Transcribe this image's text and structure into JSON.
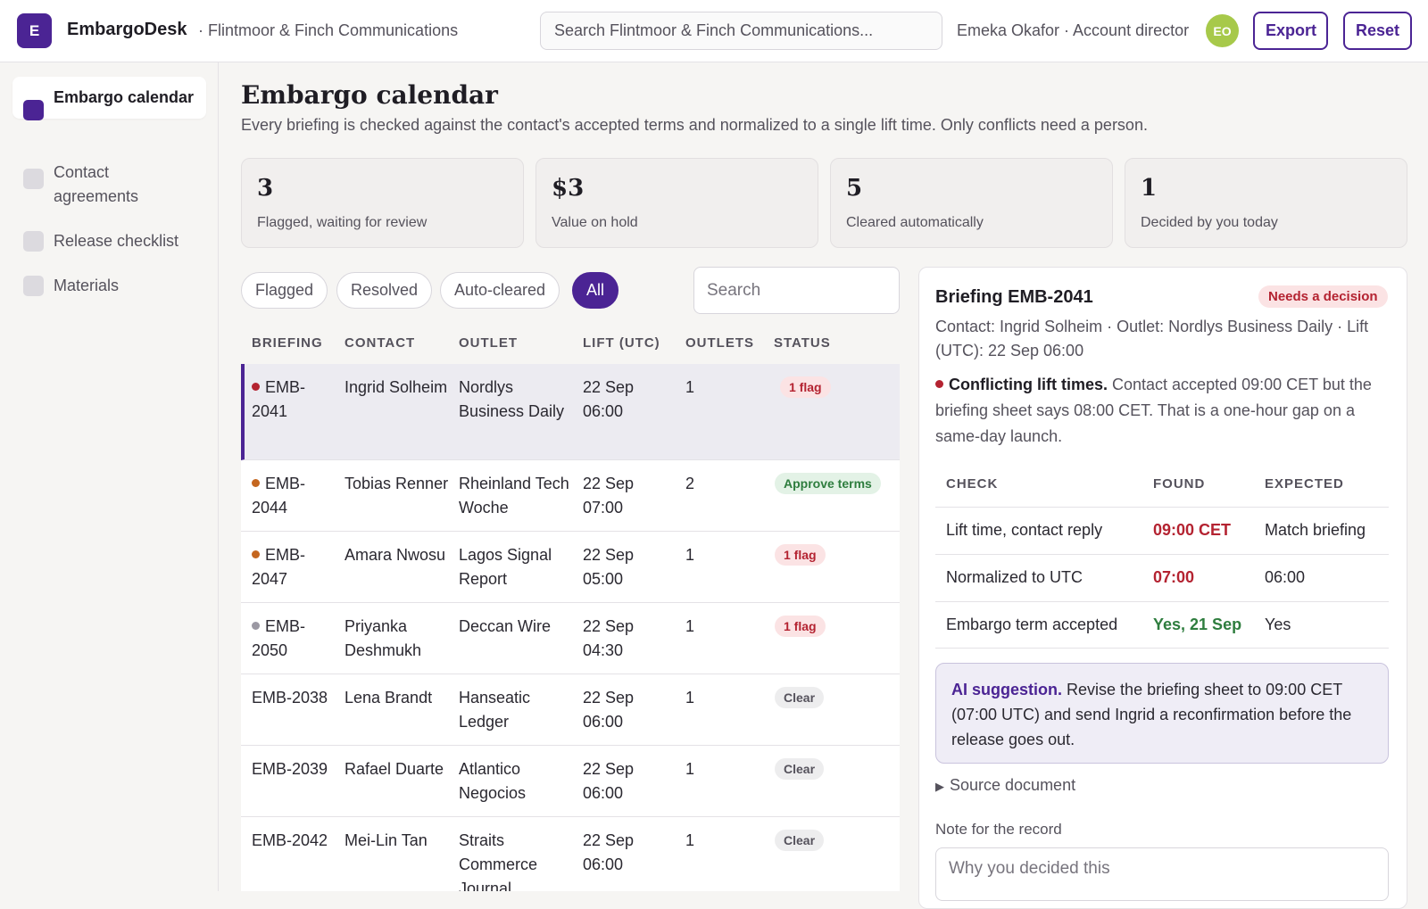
{
  "app": {
    "logo_letter": "E",
    "name": "EmbargoDesk",
    "org": "· Flintmoor & Finch Communications",
    "search_placeholder": "Search Flintmoor & Finch Communications...",
    "user": "Emeka Okafor · Account director",
    "avatar_initials": "EO",
    "export_label": "Export",
    "reset_label": "Reset"
  },
  "sidebar": {
    "items": [
      {
        "label": "Embargo calendar",
        "active": true
      },
      {
        "label": "Contact agreements",
        "active": false
      },
      {
        "label": "Release checklist",
        "active": false
      },
      {
        "label": "Materials",
        "active": false
      }
    ]
  },
  "page": {
    "title": "Embargo calendar",
    "subtitle": "Every briefing is checked against the contact's accepted terms and normalized to a single lift time. Only conflicts need a person."
  },
  "stats": [
    {
      "value": "3",
      "label": "Flagged, waiting for review"
    },
    {
      "value": "$3",
      "label": "Value on hold"
    },
    {
      "value": "5",
      "label": "Cleared automatically"
    },
    {
      "value": "1",
      "label": "Decided by you today"
    }
  ],
  "filters": {
    "chips": [
      "Flagged",
      "Resolved",
      "Auto-cleared",
      "All"
    ],
    "active": "All",
    "search_placeholder": "Search"
  },
  "table": {
    "headers": [
      "BRIEFING",
      "CONTACT",
      "OUTLET",
      "LIFT (UTC)",
      "OUTLETS",
      "STATUS"
    ],
    "rows": [
      {
        "id": "EMB-2041",
        "contact": "Ingrid Solheim",
        "outlet": "Nordlys Business Daily",
        "lift": "22 Sep 06:00",
        "outlets": "1",
        "status": "1 flag",
        "dot": "#b42331",
        "status_kind": "flag"
      },
      {
        "id": "EMB-2044",
        "contact": "Tobias Renner",
        "outlet": "Rheinland Tech Woche",
        "lift": "22 Sep 07:00",
        "outlets": "2",
        "status": "Approve terms",
        "dot": "#c4661f",
        "status_kind": "approve"
      },
      {
        "id": "EMB-2047",
        "contact": "Amara Nwosu",
        "outlet": "Lagos Signal Report",
        "lift": "22 Sep 05:00",
        "outlets": "1",
        "status": "1 flag",
        "dot": "#c4661f",
        "status_kind": "flag"
      },
      {
        "id": "EMB-2050",
        "contact": "Priyanka Deshmukh",
        "outlet": "Deccan Wire",
        "lift": "22 Sep 04:30",
        "outlets": "1",
        "status": "1 flag",
        "dot": "#9b98a3",
        "status_kind": "flag"
      },
      {
        "id": "EMB-2038",
        "contact": "Lena Brandt",
        "outlet": "Hanseatic Ledger",
        "lift": "22 Sep 06:00",
        "outlets": "1",
        "status": "Clear",
        "dot": "",
        "status_kind": "clear"
      },
      {
        "id": "EMB-2039",
        "contact": "Rafael Duarte",
        "outlet": "Atlantico Negocios",
        "lift": "22 Sep 06:00",
        "outlets": "1",
        "status": "Clear",
        "dot": "",
        "status_kind": "clear"
      },
      {
        "id": "EMB-2042",
        "contact": "Mei-Lin Tan",
        "outlet": "Straits Commerce Journal",
        "lift": "22 Sep 06:00",
        "outlets": "1",
        "status": "Clear",
        "dot": "",
        "status_kind": "clear"
      }
    ]
  },
  "detail": {
    "title": "Briefing EMB-2041",
    "badge": "Needs a decision",
    "meta": "Contact: Ingrid Solheim · Outlet: Nordlys Business Daily · Lift (UTC): 22 Sep 06:00",
    "message_title": "Conflicting lift times.",
    "message_body": "Contact accepted 09:00 CET but the briefing sheet says 08:00 CET. That is a one-hour gap on a same-day launch.",
    "check_headers": [
      "CHECK",
      "FOUND",
      "EXPECTED"
    ],
    "checks": [
      {
        "check": "Lift time, contact reply",
        "found": "09:00 CET",
        "expected": "Match briefing",
        "found_kind": "bad"
      },
      {
        "check": "Normalized to UTC",
        "found": "07:00",
        "expected": "06:00",
        "found_kind": "bad"
      },
      {
        "check": "Embargo term accepted",
        "found": "Yes, 21 Sep",
        "expected": "Yes",
        "found_kind": "good"
      }
    ],
    "ai_title": "AI suggestion.",
    "ai_body": "Revise the briefing sheet to 09:00 CET (07:00 UTC) and send Ingrid a reconfirmation before the release goes out.",
    "source_label": "Source document",
    "note_label": "Note for the record",
    "note_placeholder": "Why you decided this"
  },
  "colors": {
    "accent": "#4b2494",
    "danger": "#b42331",
    "success": "#2e7d3e",
    "warning": "#c4661f"
  }
}
